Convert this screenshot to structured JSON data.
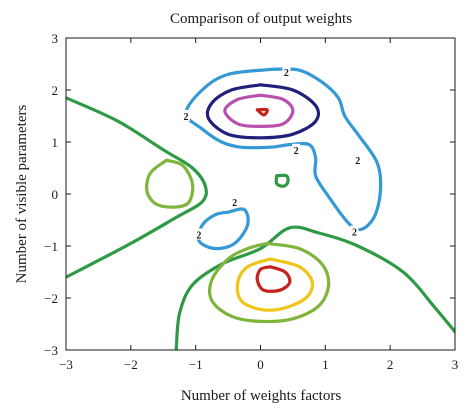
{
  "chart_data": {
    "type": "contour",
    "title": "Comparison of output weights",
    "xlabel": "Number of weights factors",
    "ylabel": "Number of visible parameters",
    "xlim": [
      -3,
      3
    ],
    "ylim": [
      -3,
      3
    ],
    "xticks": [
      -3,
      -2,
      -1,
      0,
      1,
      2,
      3
    ],
    "yticks": [
      -3,
      -2,
      -1,
      0,
      1,
      2,
      3
    ],
    "grid": false,
    "level_labels": [
      {
        "text": "2",
        "x": 0.4,
        "y": 2.35
      },
      {
        "text": "2",
        "x": -1.15,
        "y": 1.5
      },
      {
        "text": "2",
        "x": 0.55,
        "y": 0.85
      },
      {
        "text": "2",
        "x": -0.4,
        "y": -0.15
      },
      {
        "text": "2",
        "x": -0.95,
        "y": -0.78
      },
      {
        "text": "2",
        "x": 1.5,
        "y": 0.65
      },
      {
        "text": "2",
        "x": 1.45,
        "y": -0.72
      }
    ],
    "contours": [
      {
        "color": "#2e9a45",
        "points": [
          [
            -3,
            1.85
          ],
          [
            -2.2,
            1.4
          ],
          [
            -1.5,
            0.85
          ],
          [
            -1.05,
            0.5
          ],
          [
            -0.85,
            0.15
          ],
          [
            -0.9,
            -0.15
          ],
          [
            -1.3,
            -0.45
          ],
          [
            -2.0,
            -0.95
          ],
          [
            -3,
            -1.6
          ]
        ]
      },
      {
        "color": "#2e9a45",
        "points": [
          [
            -1.3,
            -3
          ],
          [
            -1.25,
            -2.3
          ],
          [
            -1.05,
            -1.75
          ],
          [
            -0.6,
            -1.35
          ],
          [
            0.0,
            -1.05
          ],
          [
            0.45,
            -0.65
          ],
          [
            0.9,
            -0.75
          ],
          [
            1.5,
            -1.0
          ],
          [
            2.2,
            -1.5
          ],
          [
            2.7,
            -2.2
          ],
          [
            3,
            -2.65
          ]
        ]
      },
      {
        "color": "#7fb53c",
        "points": [
          [
            -1.45,
            0.65
          ],
          [
            -1.2,
            0.55
          ],
          [
            -1.05,
            0.2
          ],
          [
            -1.1,
            -0.15
          ],
          [
            -1.3,
            -0.25
          ],
          [
            -1.6,
            -0.2
          ],
          [
            -1.75,
            0.05
          ],
          [
            -1.7,
            0.4
          ],
          [
            -1.45,
            0.65
          ]
        ]
      },
      {
        "color": "#2e9a45",
        "points": [
          [
            0.25,
            0.35
          ],
          [
            0.4,
            0.35
          ],
          [
            0.42,
            0.22
          ],
          [
            0.35,
            0.15
          ],
          [
            0.25,
            0.2
          ],
          [
            0.25,
            0.35
          ]
        ]
      },
      {
        "color": "#3499d4",
        "points": [
          [
            0.2,
            2.4
          ],
          [
            0.6,
            2.38
          ],
          [
            0.95,
            2.15
          ],
          [
            1.2,
            1.85
          ],
          [
            1.3,
            1.5
          ],
          [
            1.5,
            1.15
          ],
          [
            1.8,
            0.6
          ],
          [
            1.85,
            0.05
          ],
          [
            1.75,
            -0.45
          ],
          [
            1.55,
            -0.68
          ],
          [
            1.35,
            -0.55
          ],
          [
            1.05,
            -0.05
          ],
          [
            0.85,
            0.35
          ],
          [
            0.85,
            0.7
          ],
          [
            0.75,
            0.95
          ],
          [
            0.45,
            0.95
          ],
          [
            0.15,
            0.9
          ],
          [
            -0.3,
            0.9
          ],
          [
            -0.6,
            1.0
          ],
          [
            -0.9,
            1.25
          ],
          [
            -1.15,
            1.55
          ],
          [
            -0.9,
            2.0
          ],
          [
            -0.5,
            2.3
          ],
          [
            0.2,
            2.4
          ]
        ]
      },
      {
        "color": "#3499d4",
        "points": [
          [
            -0.5,
            -0.35
          ],
          [
            -0.25,
            -0.3
          ],
          [
            -0.2,
            -0.6
          ],
          [
            -0.4,
            -0.95
          ],
          [
            -0.7,
            -1.05
          ],
          [
            -0.95,
            -0.9
          ],
          [
            -0.9,
            -0.6
          ],
          [
            -0.7,
            -0.4
          ],
          [
            -0.5,
            -0.35
          ]
        ]
      },
      {
        "color": "#20207a",
        "points": [
          [
            0.0,
            2.1
          ],
          [
            0.5,
            2.0
          ],
          [
            0.85,
            1.7
          ],
          [
            0.85,
            1.4
          ],
          [
            0.5,
            1.15
          ],
          [
            0.0,
            1.08
          ],
          [
            -0.5,
            1.15
          ],
          [
            -0.8,
            1.45
          ],
          [
            -0.75,
            1.75
          ],
          [
            -0.45,
            2.0
          ],
          [
            0.0,
            2.1
          ]
        ]
      },
      {
        "color": "#b950b0",
        "points": [
          [
            0.0,
            1.9
          ],
          [
            0.35,
            1.82
          ],
          [
            0.5,
            1.6
          ],
          [
            0.35,
            1.35
          ],
          [
            0.0,
            1.3
          ],
          [
            -0.35,
            1.35
          ],
          [
            -0.55,
            1.6
          ],
          [
            -0.35,
            1.82
          ],
          [
            0.0,
            1.9
          ]
        ]
      },
      {
        "color": "#c8221e",
        "points": [
          [
            -0.05,
            1.62
          ],
          [
            0.1,
            1.62
          ],
          [
            0.05,
            1.52
          ],
          [
            -0.05,
            1.62
          ]
        ]
      },
      {
        "color": "#7fb53c",
        "points": [
          [
            0.1,
            -0.95
          ],
          [
            0.6,
            -1.05
          ],
          [
            0.95,
            -1.35
          ],
          [
            1.05,
            -1.75
          ],
          [
            0.9,
            -2.15
          ],
          [
            0.5,
            -2.4
          ],
          [
            0.0,
            -2.45
          ],
          [
            -0.45,
            -2.35
          ],
          [
            -0.75,
            -2.05
          ],
          [
            -0.75,
            -1.65
          ],
          [
            -0.5,
            -1.25
          ],
          [
            -0.2,
            -1.05
          ],
          [
            0.1,
            -0.95
          ]
        ]
      },
      {
        "color": "#f0c419",
        "points": [
          [
            0.15,
            -1.25
          ],
          [
            0.6,
            -1.4
          ],
          [
            0.8,
            -1.7
          ],
          [
            0.7,
            -2.0
          ],
          [
            0.35,
            -2.2
          ],
          [
            0.0,
            -2.22
          ],
          [
            -0.3,
            -2.05
          ],
          [
            -0.35,
            -1.7
          ],
          [
            -0.2,
            -1.4
          ],
          [
            0.15,
            -1.25
          ]
        ]
      },
      {
        "color": "#c8221e",
        "points": [
          [
            0.15,
            -1.4
          ],
          [
            0.38,
            -1.5
          ],
          [
            0.45,
            -1.7
          ],
          [
            0.3,
            -1.85
          ],
          [
            0.05,
            -1.85
          ],
          [
            -0.05,
            -1.65
          ],
          [
            0.0,
            -1.45
          ],
          [
            0.15,
            -1.4
          ]
        ]
      }
    ]
  }
}
